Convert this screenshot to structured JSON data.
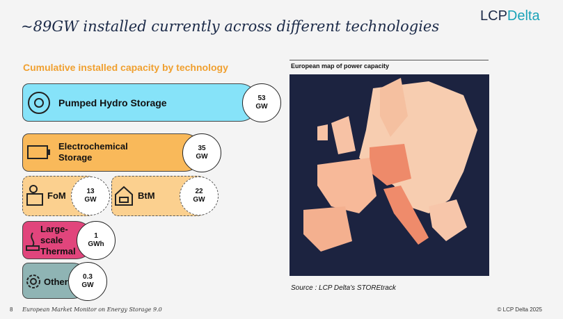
{
  "header": {
    "title": "~89GW installed currently across different technologies",
    "logo": [
      "LCP",
      "Delta"
    ]
  },
  "capacity": {
    "heading": "Cumulative installed capacity by technology",
    "items": [
      {
        "label": "Pumped Hydro Storage",
        "value": 53,
        "unit": "GW"
      },
      {
        "label": "Electrochemical Storage",
        "value": 35,
        "unit": "GW"
      },
      {
        "label": "FoM",
        "value": 13,
        "unit": "GW"
      },
      {
        "label": "BtM",
        "value": 22,
        "unit": "GW"
      },
      {
        "label": "Large-scale Thermal",
        "value": 1,
        "unit": "GWh"
      },
      {
        "label": "Other",
        "value": 0.3,
        "unit": "GW"
      }
    ]
  },
  "map": {
    "title": "European map of power capacity",
    "source": "Source : LCP Delta's STOREtrack"
  },
  "footer": {
    "page": 8,
    "publication": "European Market Monitor on Energy Storage 9.0",
    "copyright": "© LCP Delta 2025"
  }
}
